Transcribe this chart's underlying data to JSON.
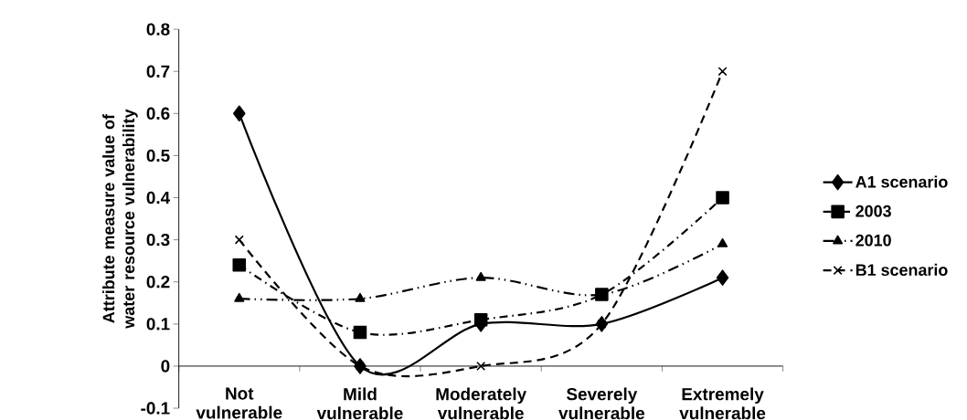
{
  "chart_data": {
    "type": "line",
    "ylabel": "Attribute measure value of water resource vulnerability",
    "categories": [
      "Not vulnerable",
      "Mild vulnerable",
      "Moderately vulnerable",
      "Severely vulnerable",
      "Extremely vulnerable"
    ],
    "series": [
      {
        "name": "A1 scenario",
        "color": "#000000",
        "marker": "diamond",
        "line_style": "solid",
        "values": [
          0.6,
          0,
          0.1,
          0.1,
          0.21
        ]
      },
      {
        "name": "2003",
        "color": "#000000",
        "marker": "square",
        "line_style": "dashdotted",
        "values": [
          0.24,
          0.08,
          0.11,
          0.17,
          0.4
        ]
      },
      {
        "name": "2010",
        "color": "#000000",
        "marker": "triangle",
        "line_style": "dashdotdotted",
        "values": [
          0.16,
          0.16,
          0.21,
          0.17,
          0.29
        ]
      },
      {
        "name": "B1 scenario",
        "color": "#000000",
        "marker": "cross",
        "line_style": "dashed",
        "values": [
          0.3,
          0,
          0,
          0.1,
          0.7
        ]
      }
    ],
    "ylim": [
      -0.1,
      0.8
    ],
    "yticks": [
      -0.1,
      0,
      0.1,
      0.2,
      0.3,
      0.4,
      0.5,
      0.6,
      0.7,
      0.8
    ],
    "grid": false,
    "legend": "right"
  }
}
